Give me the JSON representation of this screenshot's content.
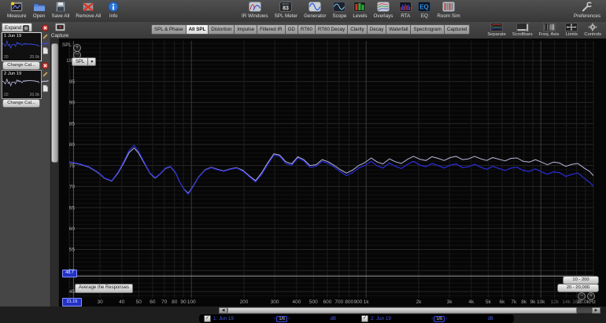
{
  "toolbar": {
    "left": [
      {
        "icon": "measure-icon",
        "label": "Measure"
      },
      {
        "icon": "open-icon",
        "label": "Open"
      },
      {
        "icon": "save-all-icon",
        "label": "Save All"
      },
      {
        "icon": "remove-all-icon",
        "label": "Remove All"
      },
      {
        "icon": "info-icon",
        "label": "Info"
      }
    ],
    "right": [
      {
        "icon": "ir-windows-icon",
        "label": "IR Windows"
      },
      {
        "icon": "spl-meter-icon",
        "label": "SPL Meter",
        "badge": "83"
      },
      {
        "icon": "generator-icon",
        "label": "Generator"
      },
      {
        "icon": "scope-icon",
        "label": "Scope"
      },
      {
        "icon": "levels-icon",
        "label": "Levels"
      },
      {
        "icon": "overlays-icon",
        "label": "Overlays"
      },
      {
        "icon": "rta-icon",
        "label": "RTA"
      },
      {
        "icon": "eq-icon",
        "label": "EQ"
      },
      {
        "icon": "room-sim-icon",
        "label": "Room Sim"
      }
    ],
    "preferences": {
      "icon": "preferences-icon",
      "label": "Preferences"
    }
  },
  "tabbar": {
    "expand_label": "Expand",
    "capture": {
      "icon": "capture-icon",
      "label": "Capture"
    },
    "tabs": [
      {
        "label": "SPL & Phase",
        "selected": false
      },
      {
        "label": "All SPL",
        "selected": true
      },
      {
        "label": "Distortion",
        "selected": false
      },
      {
        "label": "Impulse",
        "selected": false
      },
      {
        "label": "Filtered IR",
        "selected": false
      },
      {
        "label": "GD",
        "selected": false
      },
      {
        "label": "RT60",
        "selected": false
      },
      {
        "label": "RT60 Decay",
        "selected": false
      },
      {
        "label": "Clarity",
        "selected": false
      },
      {
        "label": "Decay",
        "selected": false
      },
      {
        "label": "Waterfall",
        "selected": false
      },
      {
        "label": "Spectrogram",
        "selected": false
      },
      {
        "label": "Captured",
        "selected": false
      }
    ],
    "right_buttons": [
      {
        "icon": "separate-icon",
        "label": "Separate"
      },
      {
        "icon": "scrollbars-icon",
        "label": "Scrollbars"
      },
      {
        "icon": "freq-axis-icon",
        "label": "Freq. Axis"
      },
      {
        "icon": "limits-icon",
        "label": "Limits"
      },
      {
        "icon": "controls-icon",
        "label": "Controls"
      }
    ]
  },
  "sidebar": {
    "measurements": [
      {
        "title": "1 Jun 19",
        "freq_min": "20",
        "freq_max": "20.0k",
        "cal_button": "Change Cal...",
        "trace_color": "#3b4be0",
        "selected": true
      },
      {
        "title": "2 Jun 19",
        "freq_min": "20",
        "freq_max": "20.0k",
        "cal_button": "Change Cal...",
        "trace_color": "#b9b9de",
        "selected": false
      }
    ]
  },
  "graph": {
    "axis_title": "SPL",
    "selector_label": "SPL",
    "cursor_spl": "48.7",
    "cursor_freq": "21.15",
    "average_button": "Average the Responses",
    "zoom_presets": [
      "10 - 200",
      "20 - 20,000"
    ]
  },
  "legend": {
    "entries": [
      {
        "checked": true,
        "name": "1: Jun 19",
        "smoothing": "1/6",
        "unit": "dB"
      },
      {
        "checked": true,
        "name": "2: Jun 19",
        "smoothing": "1/6",
        "unit": "dB"
      }
    ]
  },
  "colors": {
    "trace_1": "#2b2be0",
    "trace_2": "#b9b9de",
    "legend_text": "#4b5ae8",
    "cursor_box": "#2330c8",
    "plot_bg": "#060606"
  },
  "chart_data": {
    "type": "line",
    "x_unit": "Hz",
    "y_unit": "dB SPL",
    "x_scale": "log",
    "xlim": [
      20,
      20000
    ],
    "ylim": [
      44,
      105
    ],
    "y_ticks": [
      100,
      95,
      90,
      85,
      80,
      75,
      70,
      65,
      60,
      55,
      50,
      45
    ],
    "x_ticks": [
      {
        "f": 30,
        "label": "30"
      },
      {
        "f": 40,
        "label": "40"
      },
      {
        "f": 50,
        "label": "50"
      },
      {
        "f": 60,
        "label": "60"
      },
      {
        "f": 70,
        "label": "70"
      },
      {
        "f": 80,
        "label": "80"
      },
      {
        "f": 90,
        "label": "90"
      },
      {
        "f": 100,
        "label": "100"
      },
      {
        "f": 200,
        "label": "200"
      },
      {
        "f": 300,
        "label": "300"
      },
      {
        "f": 400,
        "label": "400"
      },
      {
        "f": 500,
        "label": "500"
      },
      {
        "f": 600,
        "label": "600"
      },
      {
        "f": 700,
        "label": "700"
      },
      {
        "f": 800,
        "label": "800"
      },
      {
        "f": 900,
        "label": "900"
      },
      {
        "f": 1000,
        "label": "1k"
      },
      {
        "f": 2000,
        "label": "2k"
      },
      {
        "f": 3000,
        "label": "3k"
      },
      {
        "f": 4000,
        "label": "4k"
      },
      {
        "f": 5000,
        "label": "5k"
      },
      {
        "f": 6000,
        "label": "6k"
      },
      {
        "f": 7000,
        "label": "7k"
      },
      {
        "f": 8000,
        "label": "8k"
      },
      {
        "f": 9000,
        "label": "9k"
      },
      {
        "f": 10000,
        "label": "10k"
      },
      {
        "f": 12000,
        "label": "12k",
        "dim": true
      },
      {
        "f": 14000,
        "label": "14k",
        "dim": true
      },
      {
        "f": 16000,
        "label": "16k",
        "dim": true
      },
      {
        "f": 20000,
        "label": "20.0kHz",
        "edge": true
      }
    ],
    "cursor": {
      "freq": 21.15,
      "spl": 48.7
    },
    "series": [
      {
        "name": "1: Jun 19",
        "color": "#2b2be0",
        "points": [
          [
            20,
            75.9
          ],
          [
            23,
            75.4
          ],
          [
            26,
            74.7
          ],
          [
            29,
            73.5
          ],
          [
            32,
            72.0
          ],
          [
            35,
            71.4
          ],
          [
            38,
            73.4
          ],
          [
            41,
            75.9
          ],
          [
            44,
            78.6
          ],
          [
            47,
            79.8
          ],
          [
            50,
            78.3
          ],
          [
            54,
            75.6
          ],
          [
            58,
            73.2
          ],
          [
            62,
            72.1
          ],
          [
            66,
            73.0
          ],
          [
            71,
            74.4
          ],
          [
            76,
            74.8
          ],
          [
            81,
            73.4
          ],
          [
            86,
            71.0
          ],
          [
            91,
            69.2
          ],
          [
            96,
            68.2
          ],
          [
            102,
            69.9
          ],
          [
            110,
            72.2
          ],
          [
            120,
            73.9
          ],
          [
            130,
            74.5
          ],
          [
            141,
            74.0
          ],
          [
            153,
            73.6
          ],
          [
            167,
            74.1
          ],
          [
            182,
            74.4
          ],
          [
            198,
            73.6
          ],
          [
            215,
            72.3
          ],
          [
            233,
            71.1
          ],
          [
            252,
            72.8
          ],
          [
            274,
            75.3
          ],
          [
            297,
            77.5
          ],
          [
            320,
            77.2
          ],
          [
            347,
            75.5
          ],
          [
            375,
            75.0
          ],
          [
            407,
            76.8
          ],
          [
            440,
            76.1
          ],
          [
            477,
            74.6
          ],
          [
            517,
            74.8
          ],
          [
            560,
            76.0
          ],
          [
            607,
            75.5
          ],
          [
            658,
            74.6
          ],
          [
            713,
            73.5
          ],
          [
            772,
            72.6
          ],
          [
            837,
            73.3
          ],
          [
            907,
            74.4
          ],
          [
            983,
            75.0
          ],
          [
            1070,
            76.0
          ],
          [
            1160,
            74.9
          ],
          [
            1250,
            74.4
          ],
          [
            1360,
            75.6
          ],
          [
            1470,
            74.8
          ],
          [
            1590,
            74.3
          ],
          [
            1730,
            75.3
          ],
          [
            1870,
            76.0
          ],
          [
            2030,
            75.1
          ],
          [
            2200,
            74.7
          ],
          [
            2380,
            75.5
          ],
          [
            2580,
            75.0
          ],
          [
            2800,
            74.4
          ],
          [
            3030,
            75.1
          ],
          [
            3280,
            75.4
          ],
          [
            3560,
            74.5
          ],
          [
            3860,
            74.7
          ],
          [
            4180,
            75.3
          ],
          [
            4530,
            74.6
          ],
          [
            4900,
            74.1
          ],
          [
            5310,
            74.8
          ],
          [
            5760,
            74.3
          ],
          [
            6240,
            73.8
          ],
          [
            6760,
            74.4
          ],
          [
            7320,
            74.6
          ],
          [
            7930,
            73.8
          ],
          [
            8590,
            73.6
          ],
          [
            9310,
            74.2
          ],
          [
            10100,
            73.5
          ],
          [
            10900,
            72.9
          ],
          [
            11800,
            73.5
          ],
          [
            12800,
            73.3
          ],
          [
            13900,
            72.4
          ],
          [
            15100,
            72.9
          ],
          [
            16300,
            73.2
          ],
          [
            17700,
            72.0
          ],
          [
            19000,
            71.0
          ],
          [
            20000,
            70.1
          ]
        ]
      },
      {
        "name": "2: Jun 19",
        "color": "#b9b9de",
        "points": [
          [
            20,
            75.8
          ],
          [
            23,
            75.3
          ],
          [
            26,
            74.6
          ],
          [
            29,
            73.4
          ],
          [
            32,
            71.9
          ],
          [
            35,
            71.3
          ],
          [
            38,
            73.2
          ],
          [
            41,
            75.6
          ],
          [
            44,
            78.1
          ],
          [
            47,
            79.2
          ],
          [
            50,
            77.9
          ],
          [
            54,
            75.4
          ],
          [
            58,
            73.1
          ],
          [
            62,
            72.0
          ],
          [
            66,
            72.9
          ],
          [
            71,
            74.3
          ],
          [
            76,
            74.7
          ],
          [
            81,
            73.3
          ],
          [
            86,
            71.0
          ],
          [
            91,
            69.3
          ],
          [
            96,
            68.4
          ],
          [
            102,
            70.0
          ],
          [
            110,
            72.3
          ],
          [
            120,
            74.0
          ],
          [
            130,
            74.6
          ],
          [
            141,
            74.1
          ],
          [
            153,
            73.7
          ],
          [
            167,
            74.2
          ],
          [
            182,
            74.5
          ],
          [
            198,
            73.8
          ],
          [
            215,
            72.5
          ],
          [
            233,
            71.4
          ],
          [
            252,
            73.2
          ],
          [
            274,
            75.7
          ],
          [
            297,
            77.8
          ],
          [
            320,
            77.5
          ],
          [
            347,
            75.9
          ],
          [
            375,
            75.4
          ],
          [
            407,
            77.1
          ],
          [
            440,
            76.4
          ],
          [
            477,
            75.0
          ],
          [
            517,
            75.2
          ],
          [
            560,
            76.4
          ],
          [
            607,
            75.9
          ],
          [
            658,
            75.0
          ],
          [
            713,
            74.0
          ],
          [
            772,
            73.2
          ],
          [
            837,
            73.9
          ],
          [
            907,
            75.0
          ],
          [
            983,
            75.7
          ],
          [
            1070,
            76.8
          ],
          [
            1160,
            75.8
          ],
          [
            1250,
            75.4
          ],
          [
            1360,
            76.6
          ],
          [
            1470,
            75.9
          ],
          [
            1590,
            75.5
          ],
          [
            1730,
            76.5
          ],
          [
            1870,
            77.2
          ],
          [
            2030,
            76.5
          ],
          [
            2200,
            76.2
          ],
          [
            2380,
            77.1
          ],
          [
            2580,
            76.7
          ],
          [
            2800,
            76.2
          ],
          [
            3030,
            76.9
          ],
          [
            3280,
            77.2
          ],
          [
            3560,
            76.4
          ],
          [
            3860,
            76.6
          ],
          [
            4180,
            77.2
          ],
          [
            4530,
            76.6
          ],
          [
            4900,
            76.2
          ],
          [
            5310,
            76.9
          ],
          [
            5760,
            76.5
          ],
          [
            6240,
            76.1
          ],
          [
            6760,
            76.7
          ],
          [
            7320,
            76.8
          ],
          [
            7930,
            76.0
          ],
          [
            8590,
            75.8
          ],
          [
            9310,
            76.4
          ],
          [
            10100,
            75.8
          ],
          [
            10900,
            75.2
          ],
          [
            11800,
            75.8
          ],
          [
            12800,
            75.6
          ],
          [
            13900,
            74.8
          ],
          [
            15100,
            75.3
          ],
          [
            16300,
            75.5
          ],
          [
            17700,
            74.4
          ],
          [
            19000,
            73.6
          ],
          [
            20000,
            72.6
          ]
        ]
      }
    ]
  }
}
